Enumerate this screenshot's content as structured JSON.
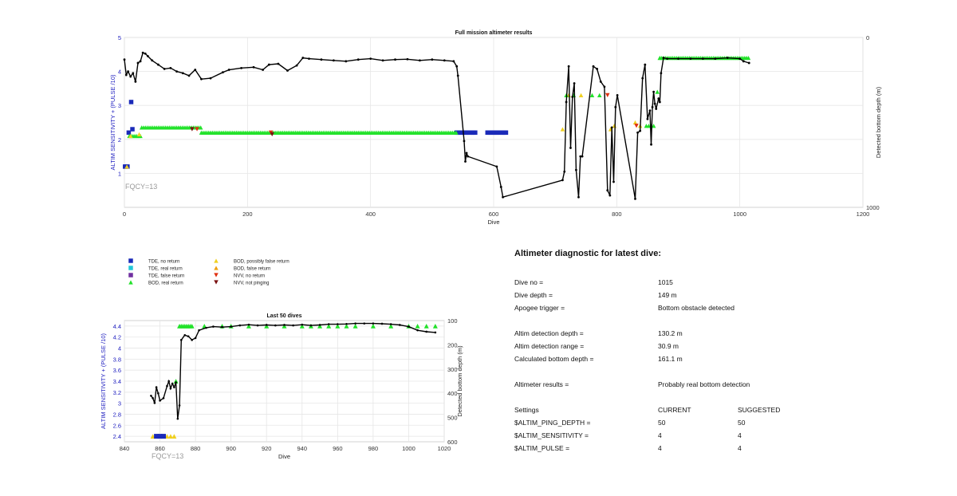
{
  "colors": {
    "tde_no_return": "#1a2ab8",
    "tde_real_return": "#22c8d8",
    "tde_false_return": "#7030a0",
    "bod_real_return": "#22e22a",
    "bod_possibly_false_return": "#f0d020",
    "bod_false_return": "#f0a010",
    "nvv_no_return": "#e03010",
    "nvv_not_pinging": "#7a1010",
    "depth_line": "#000000",
    "left_axis_text": "#2020c0",
    "fqcy_text": "#999999"
  },
  "legend": {
    "items": [
      {
        "label": "TDE, no return",
        "marker": "square",
        "color_key": "tde_no_return"
      },
      {
        "label": "TDE, real return",
        "marker": "square",
        "color_key": "tde_real_return"
      },
      {
        "label": "TDE, false return",
        "marker": "square",
        "color_key": "tde_false_return"
      },
      {
        "label": "BOD, real return",
        "marker": "triangle-up",
        "color_key": "bod_real_return"
      },
      {
        "label": "BOD, possibly false return",
        "marker": "triangle-up",
        "color_key": "bod_possibly_false_return"
      },
      {
        "label": "BOD, false return",
        "marker": "triangle-up",
        "color_key": "bod_false_return"
      },
      {
        "label": "NVV, no return",
        "marker": "triangle-down",
        "color_key": "nvv_no_return"
      },
      {
        "label": "NVV, not pinging",
        "marker": "triangle-down",
        "color_key": "nvv_not_pinging"
      }
    ]
  },
  "chart_data": [
    {
      "type": "scatter",
      "title": "Full mission altimeter results",
      "xlabel": "Dive",
      "ylabel_left": "ALTIM SENSITIVITY + (PULSE /10)",
      "ylabel_right": "Detected bottom depth (m)",
      "xlim": [
        0,
        1200
      ],
      "ylim_left": [
        0,
        5
      ],
      "ylim_right": [
        1000,
        0
      ],
      "xticks": [
        "0",
        "200",
        "400",
        "600",
        "800",
        "1000",
        "1200"
      ],
      "yticks_left": [
        "1",
        "2",
        "3",
        "4",
        "5"
      ],
      "yticks_right_labels": [
        "0",
        "1000"
      ],
      "grid": true,
      "annotation": "FQCY=13",
      "setting_markers": [
        {
          "category": "tde_no_return",
          "points": [
            [
              1,
              1.2
            ],
            [
              3,
              1.2
            ],
            [
              5,
              1.2
            ],
            [
              7,
              2.2
            ],
            [
              11,
              3.1
            ],
            [
              13,
              2.3
            ],
            [
              542,
              2.2
            ],
            [
              556,
              2.2
            ],
            [
              566,
              2.2
            ],
            [
              592,
              2.2
            ],
            [
              600,
              2.2
            ],
            [
              606,
              2.2
            ],
            [
              614,
              2.2
            ],
            [
              618,
              2.2
            ]
          ]
        },
        {
          "category": "tde_no_return",
          "segments": [
            [
              540,
              570,
              2.2
            ],
            [
              590,
              620,
              2.2
            ]
          ]
        },
        {
          "category": "bod_real_return",
          "segments": [
            [
              8,
              28,
              2.1
            ],
            [
              28,
              125,
              2.35
            ],
            [
              125,
              540,
              2.2
            ]
          ]
        },
        {
          "category": "bod_possibly_false_return",
          "points": [
            [
              4,
              1.2
            ],
            [
              10,
              2.1
            ],
            [
              24,
              2.15
            ],
            [
              712,
              2.3
            ],
            [
              722,
              3.3
            ],
            [
              742,
              3.3
            ],
            [
              790,
              2.3
            ],
            [
              796,
              2.4
            ],
            [
              830,
              2.5
            ],
            [
              838,
              2.4
            ]
          ]
        },
        {
          "category": "bod_real_return",
          "points": [
            [
              718,
              3.3
            ],
            [
              730,
              3.3
            ],
            [
              760,
              3.3
            ],
            [
              772,
              3.3
            ],
            [
              848,
              2.4
            ],
            [
              852,
              2.4
            ],
            [
              856,
              2.4
            ],
            [
              860,
              2.4
            ],
            [
              866,
              3.4
            ],
            [
              870,
              4.4
            ]
          ]
        },
        {
          "category": "bod_real_return",
          "segments": [
            [
              870,
              1015,
              4.4
            ]
          ]
        },
        {
          "category": "nvv_no_return",
          "points": [
            [
              118,
              2.3
            ],
            [
              238,
              2.2
            ],
            [
              785,
              3.3
            ],
            [
              832,
              2.4
            ]
          ]
        },
        {
          "category": "nvv_not_pinging",
          "points": [
            [
              110,
              2.3
            ],
            [
              240,
              2.15
            ]
          ]
        }
      ],
      "depth_series": {
        "name": "Detected bottom depth",
        "points": [
          [
            0,
            130
          ],
          [
            3,
            220
          ],
          [
            6,
            200
          ],
          [
            10,
            230
          ],
          [
            14,
            210
          ],
          [
            18,
            260
          ],
          [
            22,
            150
          ],
          [
            26,
            140
          ],
          [
            30,
            90
          ],
          [
            34,
            95
          ],
          [
            38,
            110
          ],
          [
            45,
            135
          ],
          [
            55,
            160
          ],
          [
            65,
            185
          ],
          [
            75,
            180
          ],
          [
            85,
            200
          ],
          [
            95,
            210
          ],
          [
            105,
            225
          ],
          [
            115,
            190
          ],
          [
            125,
            245
          ],
          [
            140,
            240
          ],
          [
            160,
            205
          ],
          [
            170,
            190
          ],
          [
            190,
            180
          ],
          [
            210,
            175
          ],
          [
            225,
            190
          ],
          [
            235,
            160
          ],
          [
            250,
            155
          ],
          [
            265,
            195
          ],
          [
            280,
            165
          ],
          [
            290,
            120
          ],
          [
            300,
            125
          ],
          [
            320,
            130
          ],
          [
            340,
            135
          ],
          [
            360,
            140
          ],
          [
            380,
            130
          ],
          [
            400,
            125
          ],
          [
            420,
            135
          ],
          [
            440,
            130
          ],
          [
            460,
            128
          ],
          [
            480,
            135
          ],
          [
            500,
            130
          ],
          [
            520,
            135
          ],
          [
            535,
            140
          ],
          [
            540,
            170
          ],
          [
            542,
            225
          ],
          [
            552,
            610
          ],
          [
            554,
            730
          ],
          [
            556,
            680
          ],
          [
            558,
            700
          ],
          [
            605,
            760
          ],
          [
            612,
            880
          ],
          [
            615,
            940
          ],
          [
            712,
            840
          ],
          [
            715,
            790
          ],
          [
            718,
            380
          ],
          [
            722,
            170
          ],
          [
            725,
            650
          ],
          [
            728,
            350
          ],
          [
            731,
            270
          ],
          [
            734,
            780
          ],
          [
            738,
            940
          ],
          [
            741,
            700
          ],
          [
            744,
            700
          ],
          [
            762,
            170
          ],
          [
            768,
            185
          ],
          [
            774,
            260
          ],
          [
            780,
            290
          ],
          [
            785,
            900
          ],
          [
            789,
            930
          ],
          [
            792,
            530
          ],
          [
            795,
            850
          ],
          [
            798,
            410
          ],
          [
            801,
            340
          ],
          [
            830,
            950
          ],
          [
            834,
            560
          ],
          [
            838,
            550
          ],
          [
            842,
            240
          ],
          [
            846,
            160
          ],
          [
            850,
            480
          ],
          [
            854,
            430
          ],
          [
            856,
            630
          ],
          [
            858,
            410
          ],
          [
            860,
            320
          ],
          [
            862,
            390
          ],
          [
            864,
            420
          ],
          [
            868,
            360
          ],
          [
            870,
            380
          ],
          [
            872,
            210
          ],
          [
            876,
            120
          ],
          [
            882,
            125
          ],
          [
            900,
            125
          ],
          [
            920,
            125
          ],
          [
            940,
            125
          ],
          [
            960,
            125
          ],
          [
            980,
            120
          ],
          [
            1000,
            125
          ],
          [
            1006,
            140
          ],
          [
            1015,
            150
          ]
        ]
      }
    },
    {
      "type": "scatter",
      "title": "Last 50 dives",
      "xlabel": "Dive",
      "ylabel_left": "ALTIM SENSITIVITY + (PULSE /10)",
      "ylabel_right": "Detected bottom depth (m)",
      "xlim": [
        840,
        1020
      ],
      "ylim_left": [
        2.3,
        4.5
      ],
      "ylim_right": [
        600,
        100
      ],
      "xticks": [
        "840",
        "860",
        "880",
        "900",
        "920",
        "940",
        "960",
        "980",
        "1000",
        "1020"
      ],
      "yticks_left": [
        "2.4",
        "2.6",
        "2.8",
        "3",
        "3.2",
        "3.4",
        "3.6",
        "3.8",
        "4",
        "4.2",
        "4.4"
      ],
      "yticks_right": [
        "100",
        "200",
        "300",
        "400",
        "500",
        "600"
      ],
      "grid": true,
      "annotation": "FQCY=13",
      "setting_markers": [
        {
          "category": "bod_possibly_false_return",
          "points": [
            [
              856,
              2.4
            ],
            [
              858,
              2.4
            ],
            [
              862,
              2.4
            ],
            [
              864,
              2.4
            ],
            [
              866,
              2.4
            ],
            [
              868,
              2.4
            ]
          ]
        },
        {
          "category": "tde_no_return",
          "points": [
            [
              858,
              2.4
            ],
            [
              860,
              2.4
            ],
            [
              862,
              2.4
            ]
          ]
        },
        {
          "category": "bod_real_return",
          "points": [
            [
              869,
              3.4
            ],
            [
              871,
              4.4
            ],
            [
              872,
              4.4
            ],
            [
              873,
              4.4
            ],
            [
              874,
              4.4
            ],
            [
              875,
              4.4
            ],
            [
              876,
              4.4
            ],
            [
              877,
              4.4
            ],
            [
              878,
              4.4
            ],
            [
              885,
              4.4
            ],
            [
              895,
              4.4
            ],
            [
              900,
              4.4
            ],
            [
              910,
              4.4
            ],
            [
              920,
              4.4
            ],
            [
              930,
              4.4
            ],
            [
              940,
              4.4
            ],
            [
              945,
              4.4
            ],
            [
              950,
              4.4
            ],
            [
              955,
              4.4
            ],
            [
              960,
              4.4
            ],
            [
              965,
              4.4
            ],
            [
              970,
              4.4
            ],
            [
              980,
              4.4
            ],
            [
              990,
              4.4
            ],
            [
              1000,
              4.4
            ],
            [
              1005,
              4.4
            ],
            [
              1010,
              4.4
            ],
            [
              1015,
              4.4
            ]
          ]
        }
      ],
      "depth_series": {
        "name": "Detected bottom depth",
        "points": [
          [
            855,
            410
          ],
          [
            856,
            420
          ],
          [
            857,
            440
          ],
          [
            858,
            375
          ],
          [
            859,
            400
          ],
          [
            860,
            430
          ],
          [
            862,
            420
          ],
          [
            864,
            370
          ],
          [
            865,
            350
          ],
          [
            866,
            380
          ],
          [
            867,
            360
          ],
          [
            868,
            375
          ],
          [
            869,
            355
          ],
          [
            870,
            505
          ],
          [
            871,
            450
          ],
          [
            872,
            180
          ],
          [
            874,
            160
          ],
          [
            876,
            165
          ],
          [
            878,
            180
          ],
          [
            880,
            172
          ],
          [
            882,
            140
          ],
          [
            886,
            130
          ],
          [
            890,
            125
          ],
          [
            895,
            127
          ],
          [
            900,
            125
          ],
          [
            905,
            120
          ],
          [
            910,
            117
          ],
          [
            915,
            120
          ],
          [
            920,
            118
          ],
          [
            925,
            120
          ],
          [
            930,
            118
          ],
          [
            935,
            120
          ],
          [
            940,
            117
          ],
          [
            945,
            120
          ],
          [
            950,
            118
          ],
          [
            955,
            115
          ],
          [
            960,
            115
          ],
          [
            965,
            114
          ],
          [
            970,
            112
          ],
          [
            975,
            112
          ],
          [
            980,
            112
          ],
          [
            985,
            113
          ],
          [
            990,
            115
          ],
          [
            995,
            118
          ],
          [
            1000,
            125
          ],
          [
            1005,
            140
          ],
          [
            1010,
            146
          ],
          [
            1015,
            149
          ]
        ]
      }
    }
  ],
  "diagnostic": {
    "title": "Altimeter diagnostic for latest dive:",
    "dive_no_label": "Dive no =",
    "dive_no_value": "1015",
    "dive_depth_label": "Dive depth =",
    "dive_depth_value": "149 m",
    "apogee_label": "Apogee trigger =",
    "apogee_value": "Bottom obstacle detected",
    "altim_depth_label": "Altim detection depth =",
    "altim_depth_value": "130.2 m",
    "altim_range_label": "Altim detection range =",
    "altim_range_value": "30.9 m",
    "calc_bottom_label": "Calculated bottom depth =",
    "calc_bottom_value": "161.1 m",
    "results_label": "Altimeter results =",
    "results_value": "Probably real bottom detection",
    "settings_label": "Settings",
    "current_label": "CURRENT",
    "suggested_label": "SUGGESTED",
    "ping_depth_label": "$ALTIM_PING_DEPTH =",
    "ping_depth_current": "50",
    "ping_depth_suggested": "50",
    "sensitivity_label": "$ALTIM_SENSITIVITY =",
    "sensitivity_current": "4",
    "sensitivity_suggested": "4",
    "pulse_label": "$ALTIM_PULSE =",
    "pulse_current": "4",
    "pulse_suggested": "4"
  }
}
